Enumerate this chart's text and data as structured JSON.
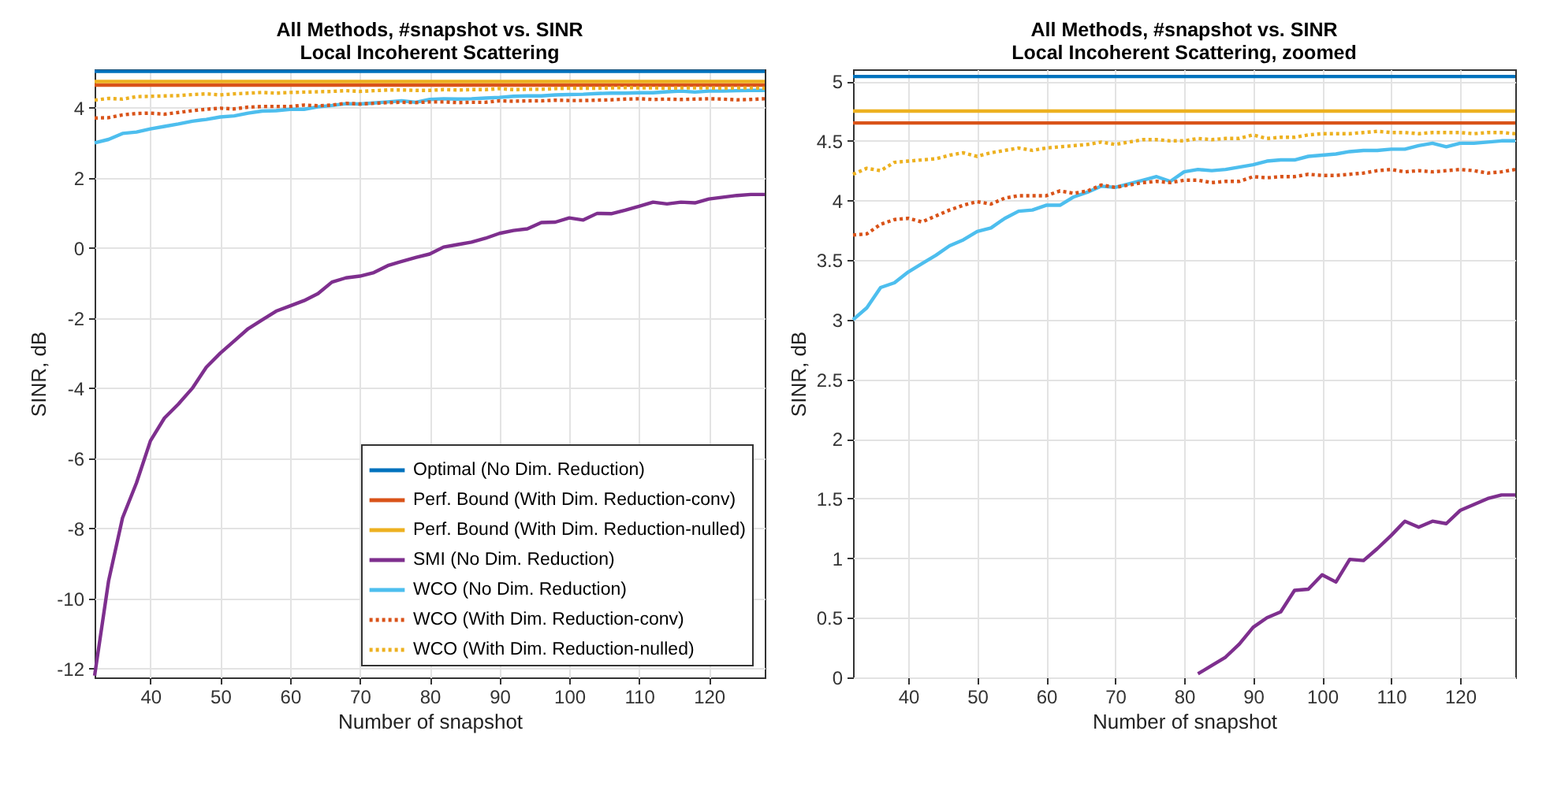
{
  "chart_data": [
    {
      "type": "line",
      "title": "All Methods, #snapshot vs. SINR",
      "subtitle": "Local Incoherent Scattering",
      "xlabel": "Number of snapshot",
      "ylabel": "SINR, dB",
      "x": [
        32,
        34,
        36,
        38,
        40,
        42,
        44,
        46,
        48,
        50,
        52,
        54,
        56,
        58,
        60,
        62,
        64,
        66,
        68,
        70,
        72,
        74,
        76,
        78,
        80,
        82,
        84,
        86,
        88,
        90,
        92,
        94,
        96,
        98,
        100,
        102,
        104,
        106,
        108,
        110,
        112,
        114,
        116,
        118,
        120,
        122,
        124,
        126,
        128
      ],
      "xlim": [
        32,
        128
      ],
      "xticks": [
        40,
        50,
        60,
        70,
        80,
        90,
        100,
        110,
        120
      ],
      "ylim": [
        -12.25,
        5.1
      ],
      "yticks": [
        -12,
        -10,
        -8,
        -6,
        -4,
        -2,
        0,
        2,
        4
      ],
      "grid": true,
      "legend": "bottom right",
      "series": [
        {
          "name": "Optimal (No Dim. Reduction)",
          "color": "#0072bd",
          "line_style": "solid",
          "values": [
            5.04,
            5.04,
            5.04,
            5.04,
            5.04,
            5.04,
            5.04,
            5.04,
            5.04,
            5.04,
            5.04,
            5.04,
            5.04,
            5.04,
            5.04,
            5.04,
            5.04,
            5.04,
            5.04,
            5.04,
            5.04,
            5.04,
            5.04,
            5.04,
            5.04,
            5.04,
            5.04,
            5.04,
            5.04,
            5.04,
            5.04,
            5.04,
            5.04,
            5.04,
            5.04,
            5.04,
            5.04,
            5.04,
            5.04,
            5.04,
            5.04,
            5.04,
            5.04,
            5.04,
            5.04,
            5.04,
            5.04,
            5.04,
            5.04
          ]
        },
        {
          "name": "Perf. Bound (With Dim. Reduction-conv)",
          "color": "#d95319",
          "line_style": "solid",
          "values": [
            4.65,
            4.65,
            4.65,
            4.65,
            4.65,
            4.65,
            4.65,
            4.65,
            4.65,
            4.65,
            4.65,
            4.65,
            4.65,
            4.65,
            4.65,
            4.65,
            4.65,
            4.65,
            4.65,
            4.65,
            4.65,
            4.65,
            4.65,
            4.65,
            4.65,
            4.65,
            4.65,
            4.65,
            4.65,
            4.65,
            4.65,
            4.65,
            4.65,
            4.65,
            4.65,
            4.65,
            4.65,
            4.65,
            4.65,
            4.65,
            4.65,
            4.65,
            4.65,
            4.65,
            4.65,
            4.65,
            4.65,
            4.65,
            4.65
          ]
        },
        {
          "name": "Perf. Bound (With Dim. Reduction-nulled)",
          "color": "#edb120",
          "line_style": "solid",
          "values": [
            4.75,
            4.75,
            4.75,
            4.75,
            4.75,
            4.75,
            4.75,
            4.75,
            4.75,
            4.75,
            4.75,
            4.75,
            4.75,
            4.75,
            4.75,
            4.75,
            4.75,
            4.75,
            4.75,
            4.75,
            4.75,
            4.75,
            4.75,
            4.75,
            4.75,
            4.75,
            4.75,
            4.75,
            4.75,
            4.75,
            4.75,
            4.75,
            4.75,
            4.75,
            4.75,
            4.75,
            4.75,
            4.75,
            4.75,
            4.75,
            4.75,
            4.75,
            4.75,
            4.75,
            4.75,
            4.75,
            4.75,
            4.75,
            4.75
          ]
        },
        {
          "name": "SMI (No Dim. Reduction)",
          "color": "#7e2f8e",
          "line_style": "solid",
          "values": [
            -12.2,
            -9.5,
            -7.7,
            -6.7,
            -5.5,
            -4.85,
            -4.45,
            -4.0,
            -3.4,
            -3.0,
            -2.65,
            -2.3,
            -2.05,
            -1.8,
            -1.65,
            -1.5,
            -1.3,
            -0.97,
            -0.85,
            -0.8,
            -0.7,
            -0.5,
            -0.38,
            -0.27,
            -0.17,
            0.03,
            0.1,
            0.17,
            0.28,
            0.42,
            0.5,
            0.55,
            0.73,
            0.74,
            0.86,
            0.8,
            0.99,
            0.98,
            1.08,
            1.19,
            1.31,
            1.26,
            1.31,
            1.29,
            1.4,
            1.45,
            1.5,
            1.53,
            1.53
          ]
        },
        {
          "name": "WCO (No Dim. Reduction)",
          "color": "#4dbeee",
          "line_style": "solid",
          "values": [
            3.0,
            3.1,
            3.27,
            3.31,
            3.4,
            3.47,
            3.54,
            3.62,
            3.67,
            3.74,
            3.77,
            3.85,
            3.91,
            3.92,
            3.96,
            3.96,
            4.03,
            4.07,
            4.12,
            4.11,
            4.14,
            4.17,
            4.2,
            4.16,
            4.24,
            4.26,
            4.25,
            4.26,
            4.28,
            4.3,
            4.33,
            4.34,
            4.34,
            4.37,
            4.38,
            4.39,
            4.41,
            4.42,
            4.42,
            4.43,
            4.43,
            4.46,
            4.48,
            4.45,
            4.48,
            4.48,
            4.49,
            4.5,
            4.5
          ]
        },
        {
          "name": "WCO (With Dim. Reduction-conv)",
          "color": "#d95319",
          "line_style": "dotted",
          "values": [
            3.71,
            3.72,
            3.8,
            3.84,
            3.85,
            3.82,
            3.87,
            3.92,
            3.96,
            3.99,
            3.97,
            4.02,
            4.04,
            4.04,
            4.04,
            4.08,
            4.06,
            4.08,
            4.13,
            4.11,
            4.13,
            4.15,
            4.16,
            4.15,
            4.17,
            4.17,
            4.15,
            4.16,
            4.16,
            4.2,
            4.19,
            4.2,
            4.2,
            4.22,
            4.21,
            4.21,
            4.22,
            4.23,
            4.25,
            4.26,
            4.24,
            4.25,
            4.24,
            4.25,
            4.26,
            4.25,
            4.23,
            4.24,
            4.26
          ]
        },
        {
          "name": "WCO (With Dim. Reduction-nulled)",
          "color": "#edb120",
          "line_style": "dotted",
          "values": [
            4.22,
            4.27,
            4.25,
            4.32,
            4.33,
            4.34,
            4.35,
            4.38,
            4.4,
            4.37,
            4.4,
            4.42,
            4.44,
            4.42,
            4.44,
            4.45,
            4.46,
            4.47,
            4.49,
            4.47,
            4.49,
            4.51,
            4.51,
            4.5,
            4.5,
            4.52,
            4.51,
            4.52,
            4.52,
            4.55,
            4.52,
            4.53,
            4.53,
            4.55,
            4.56,
            4.56,
            4.56,
            4.57,
            4.58,
            4.57,
            4.57,
            4.56,
            4.57,
            4.57,
            4.57,
            4.56,
            4.57,
            4.57,
            4.56
          ]
        }
      ]
    },
    {
      "type": "line",
      "title": "All Methods, #snapshot vs. SINR",
      "subtitle": "Local Incoherent Scattering, zoomed",
      "xlabel": "Number of snapshot",
      "ylabel": "SINR, dB",
      "x": [
        32,
        34,
        36,
        38,
        40,
        42,
        44,
        46,
        48,
        50,
        52,
        54,
        56,
        58,
        60,
        62,
        64,
        66,
        68,
        70,
        72,
        74,
        76,
        78,
        80,
        82,
        84,
        86,
        88,
        90,
        92,
        94,
        96,
        98,
        100,
        102,
        104,
        106,
        108,
        110,
        112,
        114,
        116,
        118,
        120,
        122,
        124,
        126,
        128
      ],
      "xlim": [
        32,
        128
      ],
      "xticks": [
        40,
        50,
        60,
        70,
        80,
        90,
        100,
        110,
        120
      ],
      "ylim": [
        0,
        5.1
      ],
      "yticks": [
        0,
        0.5,
        1,
        1.5,
        2,
        2.5,
        3,
        3.5,
        4,
        4.5,
        5
      ],
      "grid": true,
      "series": [
        {
          "color": "#0072bd",
          "line_style": "solid",
          "values": [
            5.04,
            5.04,
            5.04,
            5.04,
            5.04,
            5.04,
            5.04,
            5.04,
            5.04,
            5.04,
            5.04,
            5.04,
            5.04,
            5.04,
            5.04,
            5.04,
            5.04,
            5.04,
            5.04,
            5.04,
            5.04,
            5.04,
            5.04,
            5.04,
            5.04,
            5.04,
            5.04,
            5.04,
            5.04,
            5.04,
            5.04,
            5.04,
            5.04,
            5.04,
            5.04,
            5.04,
            5.04,
            5.04,
            5.04,
            5.04,
            5.04,
            5.04,
            5.04,
            5.04,
            5.04,
            5.04,
            5.04,
            5.04,
            5.04
          ]
        },
        {
          "color": "#d95319",
          "line_style": "solid",
          "values": [
            4.65,
            4.65,
            4.65,
            4.65,
            4.65,
            4.65,
            4.65,
            4.65,
            4.65,
            4.65,
            4.65,
            4.65,
            4.65,
            4.65,
            4.65,
            4.65,
            4.65,
            4.65,
            4.65,
            4.65,
            4.65,
            4.65,
            4.65,
            4.65,
            4.65,
            4.65,
            4.65,
            4.65,
            4.65,
            4.65,
            4.65,
            4.65,
            4.65,
            4.65,
            4.65,
            4.65,
            4.65,
            4.65,
            4.65,
            4.65,
            4.65,
            4.65,
            4.65,
            4.65,
            4.65,
            4.65,
            4.65,
            4.65,
            4.65
          ]
        },
        {
          "color": "#edb120",
          "line_style": "solid",
          "values": [
            4.75,
            4.75,
            4.75,
            4.75,
            4.75,
            4.75,
            4.75,
            4.75,
            4.75,
            4.75,
            4.75,
            4.75,
            4.75,
            4.75,
            4.75,
            4.75,
            4.75,
            4.75,
            4.75,
            4.75,
            4.75,
            4.75,
            4.75,
            4.75,
            4.75,
            4.75,
            4.75,
            4.75,
            4.75,
            4.75,
            4.75,
            4.75,
            4.75,
            4.75,
            4.75,
            4.75,
            4.75,
            4.75,
            4.75,
            4.75,
            4.75,
            4.75,
            4.75,
            4.75,
            4.75,
            4.75,
            4.75,
            4.75,
            4.75
          ]
        },
        {
          "color": "#7e2f8e",
          "line_style": "solid",
          "values": [
            null,
            null,
            null,
            null,
            null,
            null,
            null,
            null,
            null,
            null,
            null,
            null,
            null,
            null,
            null,
            null,
            null,
            null,
            null,
            null,
            null,
            null,
            null,
            null,
            null,
            0.03,
            0.1,
            0.17,
            0.28,
            0.42,
            0.5,
            0.55,
            0.73,
            0.74,
            0.86,
            0.8,
            0.99,
            0.98,
            1.08,
            1.19,
            1.31,
            1.26,
            1.31,
            1.29,
            1.4,
            1.45,
            1.5,
            1.53,
            1.53
          ]
        },
        {
          "color": "#4dbeee",
          "line_style": "solid",
          "values": [
            3.0,
            3.1,
            3.27,
            3.31,
            3.4,
            3.47,
            3.54,
            3.62,
            3.67,
            3.74,
            3.77,
            3.85,
            3.91,
            3.92,
            3.96,
            3.96,
            4.03,
            4.07,
            4.12,
            4.11,
            4.14,
            4.17,
            4.2,
            4.16,
            4.24,
            4.26,
            4.25,
            4.26,
            4.28,
            4.3,
            4.33,
            4.34,
            4.34,
            4.37,
            4.38,
            4.39,
            4.41,
            4.42,
            4.42,
            4.43,
            4.43,
            4.46,
            4.48,
            4.45,
            4.48,
            4.48,
            4.49,
            4.5,
            4.5
          ]
        },
        {
          "color": "#d95319",
          "line_style": "dotted",
          "values": [
            3.71,
            3.72,
            3.8,
            3.84,
            3.85,
            3.82,
            3.87,
            3.92,
            3.96,
            3.99,
            3.97,
            4.02,
            4.04,
            4.04,
            4.04,
            4.08,
            4.06,
            4.08,
            4.13,
            4.11,
            4.13,
            4.15,
            4.16,
            4.15,
            4.17,
            4.17,
            4.15,
            4.16,
            4.16,
            4.2,
            4.19,
            4.2,
            4.2,
            4.22,
            4.21,
            4.21,
            4.22,
            4.23,
            4.25,
            4.26,
            4.24,
            4.25,
            4.24,
            4.25,
            4.26,
            4.25,
            4.23,
            4.24,
            4.26
          ]
        },
        {
          "color": "#edb120",
          "line_style": "dotted",
          "values": [
            4.22,
            4.27,
            4.25,
            4.32,
            4.33,
            4.34,
            4.35,
            4.38,
            4.4,
            4.37,
            4.4,
            4.42,
            4.44,
            4.42,
            4.44,
            4.45,
            4.46,
            4.47,
            4.49,
            4.47,
            4.49,
            4.51,
            4.51,
            4.5,
            4.5,
            4.52,
            4.51,
            4.52,
            4.52,
            4.55,
            4.52,
            4.53,
            4.53,
            4.55,
            4.56,
            4.56,
            4.56,
            4.57,
            4.58,
            4.57,
            4.57,
            4.56,
            4.57,
            4.57,
            4.57,
            4.56,
            4.57,
            4.57,
            4.56
          ]
        }
      ]
    }
  ]
}
